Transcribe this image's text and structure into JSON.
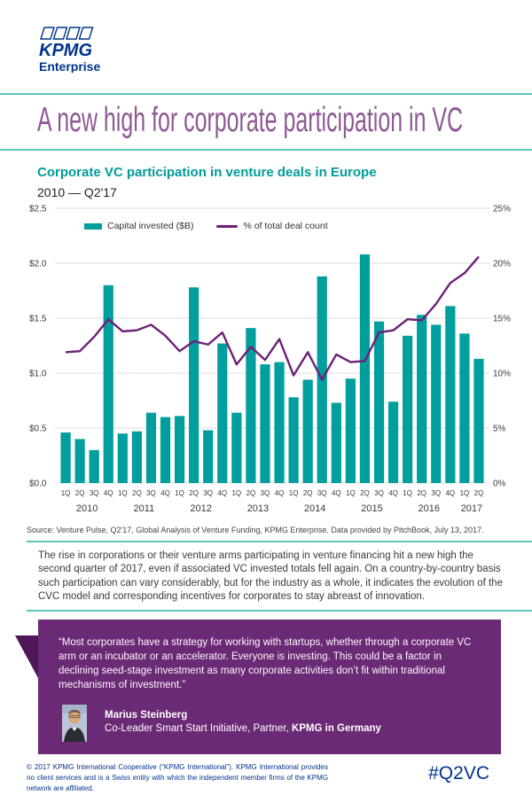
{
  "colors": {
    "teal_bar": "#009e9c",
    "purple_line": "#6d2077",
    "teal_rule": "#5fc4c0",
    "title_purple": "#8c5a93",
    "chart_title_teal": "#009a9a",
    "kpmg_blue": "#00338d",
    "quote_bg": "#6b2a75",
    "quote_tail": "#4f1758",
    "gridline": "#dcdcdc",
    "axis_text": "#3a3a3a"
  },
  "logo": {
    "text": "KPMG",
    "sub": "Enterprise"
  },
  "header": {
    "title": "A new high for corporate participation in VC"
  },
  "chart": {
    "title": "Corporate VC participation in venture deals in Europe",
    "subtitle": "2010 — Q2'17",
    "legend": {
      "bars": "Capital invested ($B)",
      "line": "% of total deal count"
    }
  },
  "chart_data": {
    "type": "bar",
    "title": "Corporate VC participation in venture deals in Europe",
    "subtitle": "2010 — Q2'17",
    "categories": [
      "1Q",
      "2Q",
      "3Q",
      "4Q",
      "1Q",
      "2Q",
      "3Q",
      "4Q",
      "1Q",
      "2Q",
      "3Q",
      "4Q",
      "1Q",
      "2Q",
      "3Q",
      "4Q",
      "1Q",
      "2Q",
      "3Q",
      "4Q",
      "1Q",
      "2Q",
      "3Q",
      "4Q",
      "1Q",
      "2Q",
      "3Q",
      "4Q",
      "1Q",
      "2Q"
    ],
    "year_groups": [
      {
        "year": "2010",
        "quarters": 4
      },
      {
        "year": "2011",
        "quarters": 4
      },
      {
        "year": "2012",
        "quarters": 4
      },
      {
        "year": "2013",
        "quarters": 4
      },
      {
        "year": "2014",
        "quarters": 4
      },
      {
        "year": "2015",
        "quarters": 4
      },
      {
        "year": "2016",
        "quarters": 4
      },
      {
        "year": "2017",
        "quarters": 2
      }
    ],
    "series": [
      {
        "name": "Capital invested ($B)",
        "type": "bar",
        "axis": "left",
        "color": "#009e9c",
        "values": [
          0.46,
          0.4,
          0.3,
          1.8,
          0.45,
          0.47,
          0.64,
          0.6,
          0.61,
          1.78,
          0.48,
          1.27,
          0.64,
          1.41,
          1.08,
          1.1,
          0.78,
          0.94,
          1.88,
          0.73,
          0.95,
          2.08,
          1.47,
          0.74,
          1.34,
          1.53,
          1.44,
          1.61,
          1.36,
          1.13
        ]
      },
      {
        "name": "% of total deal count",
        "type": "line",
        "axis": "right",
        "color": "#6d2077",
        "values": [
          11.9,
          12.0,
          13.3,
          14.9,
          13.8,
          13.9,
          14.4,
          13.4,
          12.0,
          12.9,
          12.6,
          13.7,
          10.8,
          12.4,
          11.2,
          13.1,
          9.8,
          11.9,
          9.4,
          11.7,
          11.0,
          11.1,
          13.7,
          13.9,
          14.9,
          14.8,
          16.3,
          18.2,
          19.1,
          20.6
        ]
      }
    ],
    "left_axis": {
      "min": 0,
      "max": 2.5,
      "ticks": [
        "$0.0",
        "$0.5",
        "$1.0",
        "$1.5",
        "$2.0",
        "$2.5"
      ]
    },
    "right_axis": {
      "min": 0,
      "max": 25,
      "ticks": [
        "0%",
        "5%",
        "10%",
        "15%",
        "20%",
        "25%"
      ]
    },
    "grid": true,
    "legend_position": "top-left"
  },
  "source": "Source: Venture Pulse, Q2'17, Global Analysis of Venture Funding, KPMG Enterprise. Data provided by PitchBook, July 13, 2017.",
  "body_paragraph": "The rise in corporations or their venture arms participating in venture financing hit a new high the second quarter of 2017, even if associated VC invested totals fell again. On a country-by-country basis such participation can vary considerably, but for the industry as a whole, it indicates the evolution of the CVC model and corresponding incentives for corporates to stay abreast of innovation.",
  "quote": {
    "text": "“Most corporates have a strategy for working with startups, whether through a corporate VC arm or an incubator or an accelerator. Everyone is investing. This could be a factor in declining seed-stage investment as many corporate activities don’t fit within traditional mechanisms of investment.”",
    "name": "Marius Steinberg",
    "role": "Co-Leader Smart Start Initiative, Partner, ",
    "role_bold": "KPMG in Germany"
  },
  "footer": {
    "copyright": "© 2017 KPMG International Cooperative (“KPMG International”). KPMG International provides no client services and is a Swiss entity with which the independent member firms of the KPMG network are affiliated.",
    "hashtag": "#Q2VC"
  }
}
